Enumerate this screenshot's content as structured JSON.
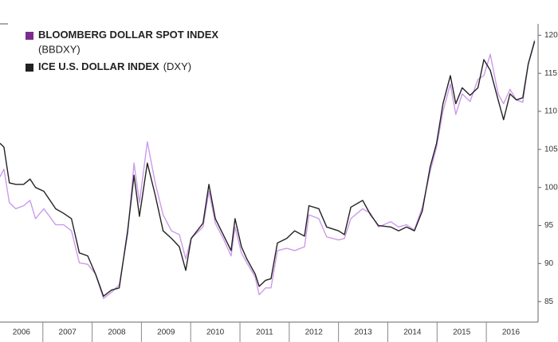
{
  "chart_data": {
    "type": "line",
    "xlim": [
      2006.13,
      2017.05
    ],
    "xticks": [
      {
        "value": 2006,
        "label": "2006"
      },
      {
        "value": 2007,
        "label": "2007"
      },
      {
        "value": 2008,
        "label": "2008"
      },
      {
        "value": 2009,
        "label": "2009"
      },
      {
        "value": 2010,
        "label": "2010"
      },
      {
        "value": 2011,
        "label": "2011"
      },
      {
        "value": 2012,
        "label": "2012"
      },
      {
        "value": 2013,
        "label": "2013"
      },
      {
        "value": 2014,
        "label": "2014"
      },
      {
        "value": 2015,
        "label": "2015"
      },
      {
        "value": 2016,
        "label": "2016"
      }
    ],
    "ylim": [
      82.3,
      121.5
    ],
    "yticks": [
      85,
      90,
      95,
      100,
      105,
      110,
      115,
      120
    ],
    "y_axis_side": "right",
    "grid": false,
    "legend": "top-left",
    "x": [
      2006.13,
      2006.21,
      2006.32,
      2006.45,
      2006.61,
      2006.74,
      2006.85,
      2007.02,
      2007.26,
      2007.42,
      2007.58,
      2007.74,
      2007.91,
      2008.07,
      2008.23,
      2008.39,
      2008.55,
      2008.72,
      2008.85,
      2008.96,
      2009.12,
      2009.28,
      2009.44,
      2009.61,
      2009.77,
      2009.9,
      2010.01,
      2010.25,
      2010.37,
      2010.5,
      2010.66,
      2010.82,
      2010.9,
      2011.03,
      2011.14,
      2011.31,
      2011.39,
      2011.52,
      2011.63,
      2011.76,
      2011.95,
      2012.11,
      2012.31,
      2012.4,
      2012.6,
      2012.76,
      2013.0,
      2013.12,
      2013.25,
      2013.49,
      2013.65,
      2013.81,
      2014.06,
      2014.22,
      2014.38,
      2014.54,
      2014.7,
      2014.86,
      2014.99,
      2015.12,
      2015.27,
      2015.38,
      2015.51,
      2015.67,
      2015.83,
      2015.95,
      2016.08,
      2016.24,
      2016.35,
      2016.48,
      2016.61,
      2016.74,
      2016.85,
      2016.98
    ],
    "series": [
      {
        "name": "BLOOMBERG DOLLAR SPOT INDEX",
        "ticker": "(BBDXY)",
        "color": "#cc9bea",
        "legend_color": "#7b2d8e",
        "values": [
          101.4,
          102.4,
          98,
          97.2,
          97.6,
          98.3,
          95.9,
          97.2,
          95.1,
          95.1,
          94.3,
          90.1,
          89.9,
          88.6,
          85.4,
          86.2,
          87.2,
          93.8,
          103.2,
          98,
          106,
          100.6,
          96.4,
          94.3,
          93.8,
          90.6,
          93.3,
          94.8,
          99.5,
          95.3,
          93.3,
          91.0,
          94.8,
          91.4,
          90.1,
          88.2,
          85.9,
          86.8,
          86.8,
          91.7,
          92.0,
          91.7,
          92.2,
          96.4,
          95.9,
          93.5,
          93.1,
          93.3,
          95.9,
          97.2,
          96.6,
          94.8,
          95.5,
          94.8,
          95.1,
          94.4,
          97.4,
          102.1,
          105.3,
          110,
          113.6,
          109.6,
          112.3,
          111.3,
          114.2,
          114.7,
          117.5,
          112.3,
          111,
          112.9,
          111.5,
          111.2,
          116.2,
          119.4
        ]
      },
      {
        "name": "ICE U.S. DOLLAR INDEX",
        "ticker": "(DXY)",
        "color": "#222222",
        "legend_color": "#222222",
        "values": [
          105.8,
          105.3,
          100.6,
          100.4,
          100.4,
          101.1,
          100,
          99.5,
          97.2,
          96.6,
          95.9,
          91.4,
          91.0,
          88.6,
          85.7,
          86.5,
          86.8,
          94.3,
          101.6,
          96.2,
          103.2,
          99,
          94.3,
          93.3,
          92.2,
          89.1,
          93.3,
          95.3,
          100.4,
          95.9,
          93.8,
          91.7,
          95.9,
          92.2,
          90.6,
          88.6,
          87.0,
          87.8,
          88.0,
          92.7,
          93.3,
          94.3,
          93.6,
          97.6,
          97.2,
          94.8,
          94.3,
          93.8,
          97.4,
          98.3,
          96.4,
          95.0,
          94.8,
          94.3,
          94.8,
          94.3,
          96.9,
          102.7,
          105.8,
          111.0,
          114.7,
          111.0,
          113.1,
          112.1,
          113.1,
          116.8,
          115.4,
          111.5,
          108.9,
          112.3,
          111.5,
          111.8,
          116.2,
          119.2
        ]
      }
    ]
  }
}
